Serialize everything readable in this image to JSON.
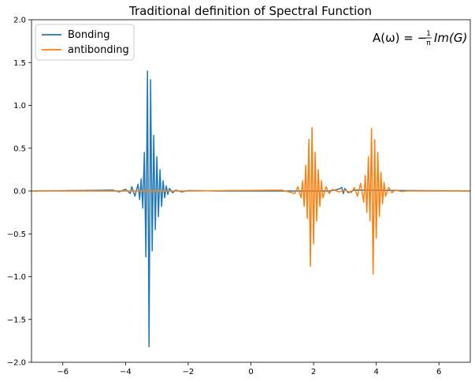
{
  "chart_data": {
    "type": "line",
    "title": "Traditional definition of Spectral Function",
    "xlabel": "",
    "ylabel": "",
    "xlim": [
      -7,
      7
    ],
    "ylim": [
      -2.0,
      2.0
    ],
    "x_ticks": [
      -6,
      -4,
      -2,
      0,
      2,
      4,
      6
    ],
    "x_tick_labels": [
      "−6",
      "−4",
      "−2",
      "0",
      "2",
      "4",
      "6"
    ],
    "y_ticks": [
      -2.0,
      -1.5,
      -1.0,
      -0.5,
      0.0,
      0.5,
      1.0,
      1.5,
      2.0
    ],
    "y_tick_labels": [
      "−2.0",
      "−1.5",
      "−1.0",
      "−0.5",
      "0.0",
      "0.5",
      "1.0",
      "1.5",
      "2.0"
    ],
    "grid": false,
    "legend_position": "top-left",
    "annotation": {
      "prefix": "A(ω) = −",
      "frac_num": "1",
      "frac_den": "π",
      "suffix": "Im(G)",
      "position": "top-right"
    },
    "series": [
      {
        "name": "Bonding",
        "color": "#1f77b4",
        "x": [
          -7.0,
          -4.4,
          -4.2,
          -4.0,
          -3.85,
          -3.8,
          -3.7,
          -3.6,
          -3.55,
          -3.5,
          -3.45,
          -3.4,
          -3.35,
          -3.3,
          -3.25,
          -3.2,
          -3.15,
          -3.1,
          -3.05,
          -3.0,
          -2.95,
          -2.9,
          -2.85,
          -2.8,
          -2.75,
          -2.7,
          -2.65,
          -2.6,
          -2.5,
          -2.4,
          -2.2,
          -2.0,
          -1.0,
          1.0,
          2.5,
          2.8,
          2.9,
          2.95,
          3.0,
          3.1,
          3.3,
          7.0
        ],
        "y": [
          0.0,
          0.01,
          -0.01,
          0.02,
          -0.03,
          0.05,
          -0.06,
          0.08,
          -0.1,
          0.14,
          -0.2,
          0.45,
          -0.77,
          1.4,
          -1.82,
          1.3,
          -0.7,
          0.65,
          -0.45,
          0.4,
          -0.3,
          0.25,
          -0.18,
          0.12,
          -0.08,
          0.06,
          -0.04,
          0.03,
          -0.02,
          0.01,
          -0.01,
          0.005,
          0.0,
          0.0,
          0.0,
          0.02,
          0.04,
          -0.03,
          0.03,
          -0.02,
          0.01,
          0.0
        ]
      },
      {
        "name": "antibonding",
        "color": "#ff7f0e",
        "x": [
          -7.0,
          -2.0,
          1.0,
          1.4,
          1.5,
          1.6,
          1.65,
          1.7,
          1.75,
          1.8,
          1.85,
          1.9,
          1.95,
          2.0,
          2.05,
          2.1,
          2.15,
          2.2,
          2.25,
          2.3,
          2.4,
          2.5,
          2.6,
          2.8,
          3.0,
          3.2,
          3.3,
          3.4,
          3.5,
          3.6,
          3.65,
          3.7,
          3.75,
          3.8,
          3.85,
          3.9,
          3.95,
          4.0,
          4.05,
          4.1,
          4.15,
          4.2,
          4.25,
          4.3,
          4.4,
          4.5,
          4.6,
          4.8,
          5.0,
          7.0
        ],
        "y": [
          0.0,
          0.0,
          0.01,
          -0.03,
          0.05,
          -0.08,
          0.12,
          -0.18,
          0.3,
          -0.32,
          0.6,
          -0.88,
          0.74,
          -0.62,
          0.45,
          -0.35,
          0.25,
          -0.18,
          0.12,
          -0.08,
          0.05,
          -0.03,
          0.02,
          -0.01,
          0.01,
          -0.02,
          0.04,
          -0.06,
          0.09,
          -0.13,
          0.18,
          -0.25,
          0.4,
          -0.35,
          0.73,
          -0.97,
          0.6,
          -0.55,
          0.45,
          -0.3,
          0.22,
          -0.15,
          0.1,
          -0.06,
          0.04,
          -0.02,
          0.01,
          -0.005,
          0.0,
          0.0
        ]
      }
    ]
  }
}
